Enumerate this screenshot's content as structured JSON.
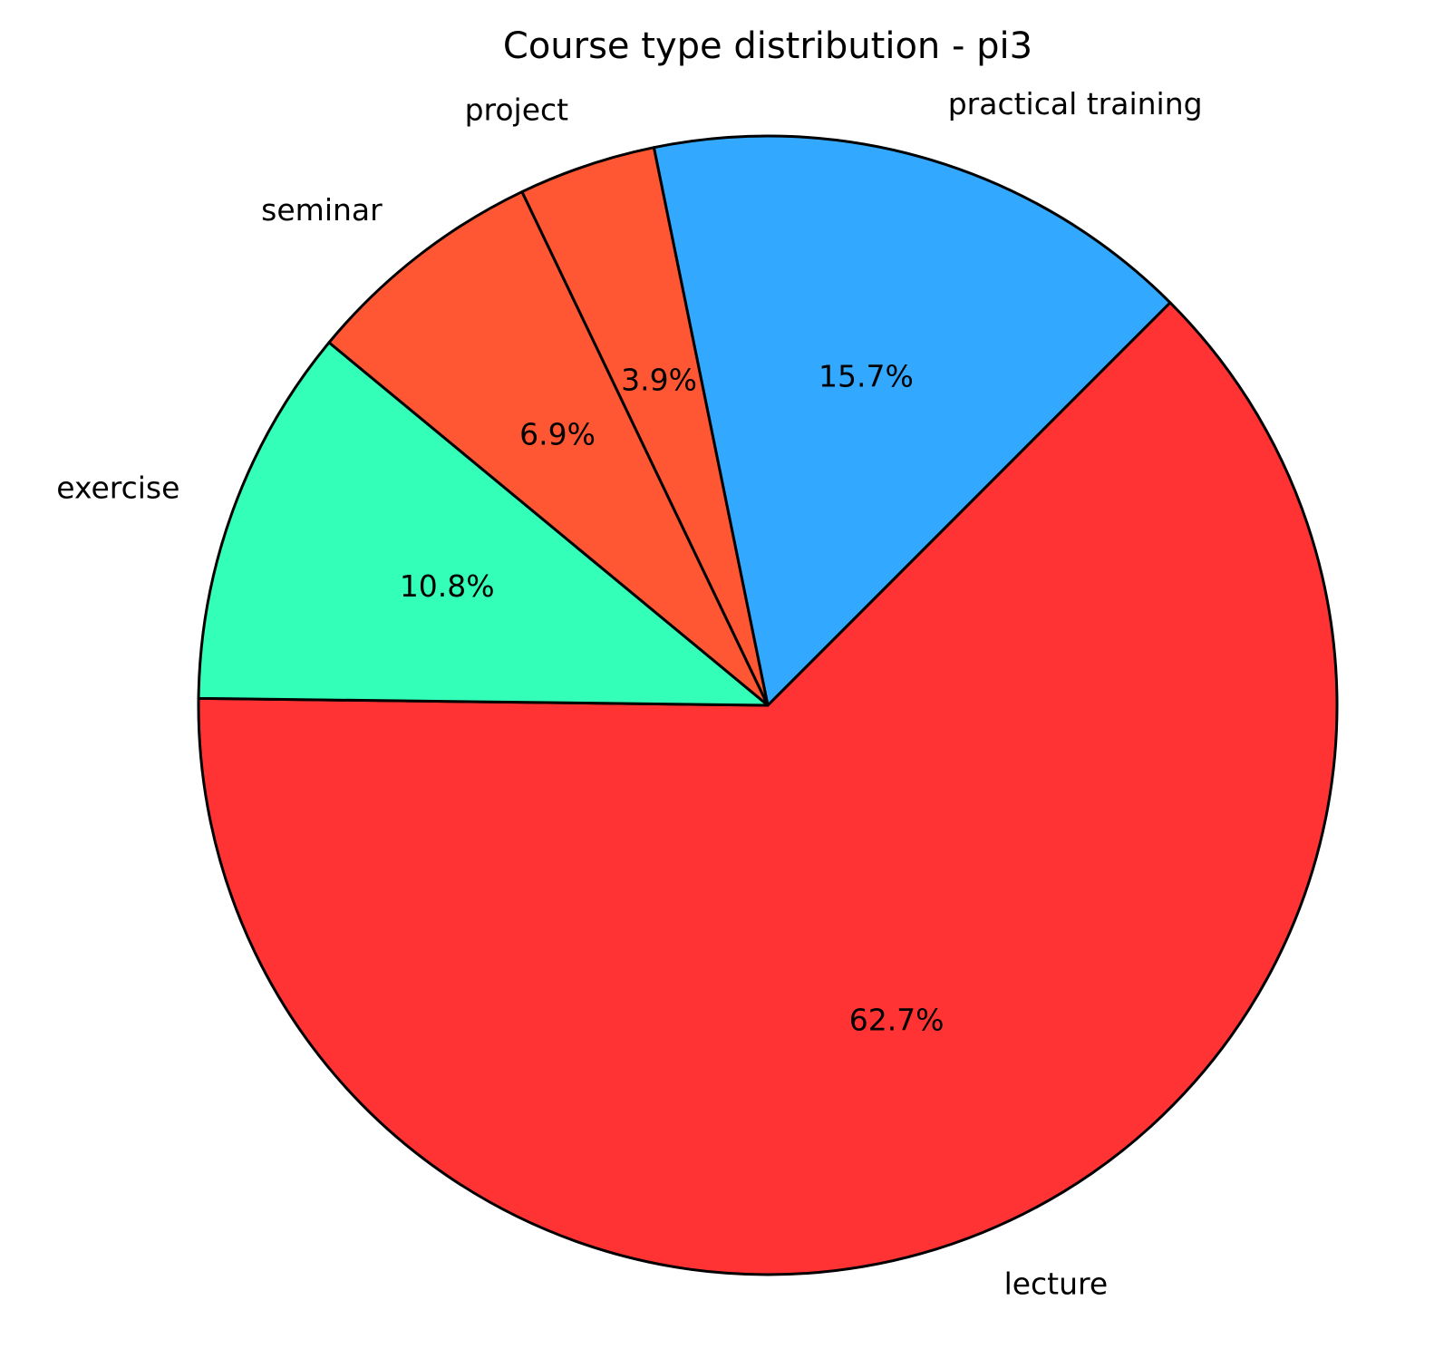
{
  "chart_data": {
    "type": "pie",
    "title": "Course type distribution - pi3",
    "categories": [
      "lecture",
      "practical training",
      "project",
      "seminar",
      "exercise"
    ],
    "values": [
      62.7,
      15.7,
      3.9,
      6.9,
      10.8
    ],
    "value_labels": [
      "62.7%",
      "15.7%",
      "3.9%",
      "6.9%",
      "10.8%"
    ],
    "colors": [
      "#FF3333",
      "#33A8FF",
      "#FF5733",
      "#FF5733",
      "#33FFB8"
    ],
    "direction": "counterclockwise",
    "edge_color": "#000000"
  }
}
